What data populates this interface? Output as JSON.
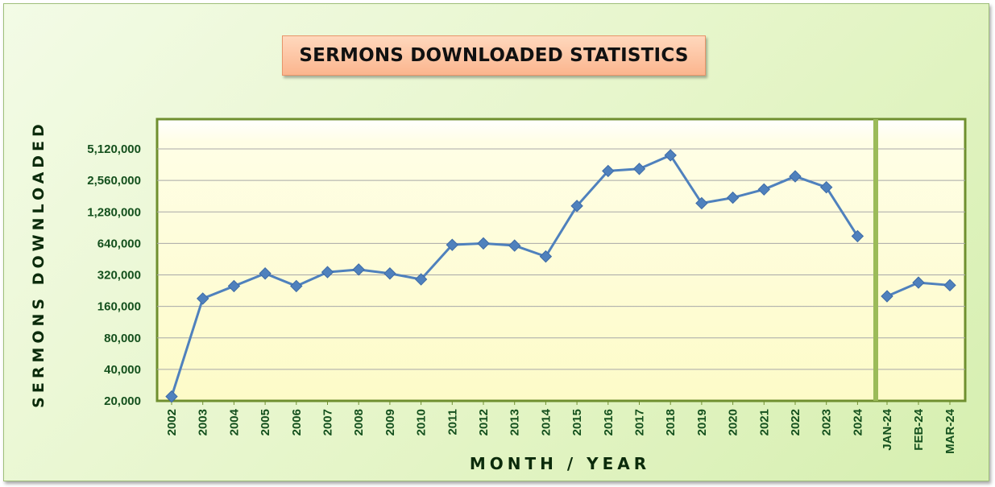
{
  "chart_data": {
    "type": "line",
    "title": "SERMONS DOWNLOADED STATISTICS",
    "xlabel": "MONTH / YEAR",
    "ylabel": "SERMONS DOWNLOADED",
    "y_scale": "log2",
    "ylim": [
      20000,
      6500000
    ],
    "y_ticks": [
      20000,
      40000,
      80000,
      160000,
      320000,
      640000,
      1280000,
      2560000,
      5120000
    ],
    "y_tick_labels": [
      "20,000",
      "40,000",
      "80,000",
      "160,000",
      "320,000",
      "640,000",
      "1,280,000",
      "2,560,000",
      "5,120,000"
    ],
    "grid": true,
    "colors": {
      "line": "#4f81bd",
      "grid": "#a8a8a8",
      "plot_bg": "#fffee0",
      "divider": "#9bbb59"
    },
    "segments": [
      {
        "categories": [
          "2002",
          "2003",
          "2004",
          "2005",
          "2006",
          "2007",
          "2008",
          "2009",
          "2010",
          "2011",
          "2012",
          "2013",
          "2014",
          "2015",
          "2016",
          "2017",
          "2018",
          "2019",
          "2020",
          "2021",
          "2022",
          "2023",
          "2024"
        ],
        "values": [
          22000,
          190000,
          250000,
          330000,
          250000,
          340000,
          360000,
          330000,
          290000,
          620000,
          640000,
          610000,
          480000,
          1460000,
          3150000,
          3300000,
          4450000,
          1550000,
          1750000,
          2100000,
          2800000,
          2200000,
          750000
        ]
      },
      {
        "categories": [
          "JAN-24",
          "FEB-24",
          "MAR-24"
        ],
        "values": [
          200000,
          270000,
          255000
        ]
      }
    ]
  }
}
